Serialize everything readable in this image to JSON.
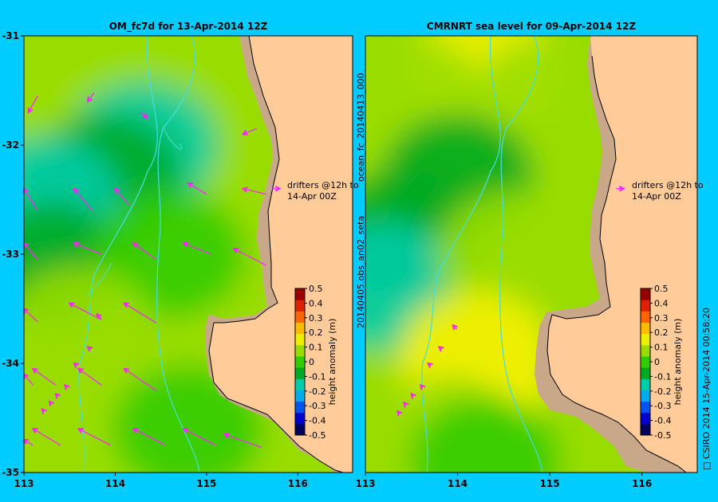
{
  "colors": {
    "background": "#00ccff",
    "land": "#ffcc99",
    "shelf": "#c8a888",
    "coast": "#000000",
    "bathymetry": "#44dddd",
    "drifter": "#ff22ff"
  },
  "chart_data": [
    {
      "type": "heatmap",
      "title": "OM_fc7d for 13-Apr-2014 12Z",
      "xlim": [
        113,
        116.6
      ],
      "ylim": [
        -35,
        -31
      ],
      "xticks": [
        "113",
        "114",
        "115",
        "116"
      ],
      "yticks": [
        "-31",
        "-32",
        "-33",
        "-34",
        "-35"
      ],
      "annotation": [
        "drifters @12h to",
        "14-Apr 00Z"
      ],
      "contour_levels": [
        {
          "lon": 113.3,
          "lat": -31.2,
          "level": 0.1
        },
        {
          "lon": 114.3,
          "lat": -32.0,
          "level": -0.2
        },
        {
          "lon": 113.9,
          "lat": -32.3,
          "level": -0.1
        },
        {
          "lon": 113.2,
          "lat": -32.5,
          "level": -0.15
        },
        {
          "lon": 113.3,
          "lat": -33.1,
          "level": -0.05
        },
        {
          "lon": 114.6,
          "lat": -33.0,
          "level": 0.0
        },
        {
          "lon": 113.6,
          "lat": -33.7,
          "level": 0.05
        },
        {
          "lon": 114.0,
          "lat": -34.2,
          "level": 0.12
        },
        {
          "lon": 113.5,
          "lat": -34.6,
          "level": 0.08
        },
        {
          "lon": 114.8,
          "lat": -34.6,
          "level": 0.0
        }
      ]
    },
    {
      "type": "heatmap",
      "title": "CMRNRT sea level  for 09-Apr-2014 12Z",
      "xlim": [
        113,
        116.6
      ],
      "ylim": [
        -35,
        -31
      ],
      "xticks": [
        "113",
        "114",
        "115",
        "116"
      ],
      "annotation": [
        "drifters @12h to",
        "14-Apr 00Z"
      ],
      "contour_levels": [
        {
          "lon": 114.3,
          "lat": -31.3,
          "level": 0.15
        },
        {
          "lon": 115.0,
          "lat": -31.6,
          "level": 0.1
        },
        {
          "lon": 113.5,
          "lat": -31.6,
          "level": 0.05
        },
        {
          "lon": 114.0,
          "lat": -32.3,
          "level": -0.1
        },
        {
          "lon": 113.4,
          "lat": -32.8,
          "level": -0.05
        },
        {
          "lon": 113.2,
          "lat": -33.3,
          "level": -0.15
        },
        {
          "lon": 114.6,
          "lat": -33.0,
          "level": 0.05
        },
        {
          "lon": 114.2,
          "lat": -33.9,
          "level": 0.15
        },
        {
          "lon": 114.2,
          "lat": -34.1,
          "level": 0.2
        },
        {
          "lon": 113.9,
          "lat": -34.7,
          "level": 0.1
        },
        {
          "lon": 114.3,
          "lat": -34.9,
          "level": 0.0
        }
      ]
    }
  ],
  "colorbar": {
    "label": "height anomaly (m)",
    "min": -0.5,
    "max": 0.5,
    "ticks": [
      "0.5",
      "0.4",
      "0.3",
      "0.2",
      "0.1",
      "0",
      "-0.1",
      "-0.2",
      "-0.3",
      "-0.4",
      "-0.5"
    ],
    "stops": [
      "#00005a",
      "#0000cc",
      "#0055ee",
      "#00aaee",
      "#00ccaa",
      "#00aa22",
      "#33cc00",
      "#99dd00",
      "#eeee00",
      "#ffbb00",
      "#ff6600",
      "#dd2200",
      "#990000"
    ]
  },
  "side_labels": {
    "file_left": "20140405.obs_an02_seta",
    "file_right": "ocean_fc_20140413_000",
    "footer": "□ CSIRO 2014   15-Apr-2014 00:58:20"
  },
  "drifters_left": [
    {
      "lon": 113.05,
      "lat": -31.7,
      "u": 0.1,
      "v": 0.15
    },
    {
      "lon": 113.7,
      "lat": -31.6,
      "u": 0.07,
      "v": 0.08
    },
    {
      "lon": 114.35,
      "lat": -31.75,
      "u": -0.08,
      "v": 0.05
    },
    {
      "lon": 115.4,
      "lat": -31.9,
      "u": 0.15,
      "v": 0.05
    },
    {
      "lon": 113.0,
      "lat": -32.4,
      "u": 0.15,
      "v": -0.2
    },
    {
      "lon": 113.55,
      "lat": -32.4,
      "u": 0.2,
      "v": -0.2
    },
    {
      "lon": 114.0,
      "lat": -32.4,
      "u": 0.15,
      "v": -0.15
    },
    {
      "lon": 114.8,
      "lat": -32.35,
      "u": 0.2,
      "v": -0.1
    },
    {
      "lon": 115.4,
      "lat": -32.4,
      "u": 0.25,
      "v": -0.05
    },
    {
      "lon": 113.0,
      "lat": -32.9,
      "u": 0.15,
      "v": -0.15
    },
    {
      "lon": 113.55,
      "lat": -32.9,
      "u": 0.3,
      "v": -0.1
    },
    {
      "lon": 114.2,
      "lat": -32.9,
      "u": 0.25,
      "v": -0.15
    },
    {
      "lon": 114.75,
      "lat": -32.9,
      "u": 0.3,
      "v": -0.1
    },
    {
      "lon": 115.3,
      "lat": -32.95,
      "u": 0.35,
      "v": -0.15
    },
    {
      "lon": 113.0,
      "lat": -33.5,
      "u": 0.15,
      "v": -0.12
    },
    {
      "lon": 113.5,
      "lat": -33.45,
      "u": 0.35,
      "v": -0.15
    },
    {
      "lon": 114.1,
      "lat": -33.45,
      "u": 0.35,
      "v": -0.18
    },
    {
      "lon": 113.8,
      "lat": -33.55,
      "u": 0.05,
      "v": -0.05
    },
    {
      "lon": 113.7,
      "lat": -33.85,
      "u": 0.03,
      "v": -0.02
    },
    {
      "lon": 113.55,
      "lat": -34.0,
      "u": 0.03,
      "v": -0.02
    },
    {
      "lon": 113.1,
      "lat": -34.05,
      "u": 0.25,
      "v": -0.15
    },
    {
      "lon": 113.6,
      "lat": -34.05,
      "u": 0.25,
      "v": -0.15
    },
    {
      "lon": 114.1,
      "lat": -34.05,
      "u": 0.35,
      "v": -0.2
    },
    {
      "lon": 113.45,
      "lat": -34.2,
      "u": 0.02,
      "v": -0.02
    },
    {
      "lon": 113.35,
      "lat": -34.28,
      "u": 0.02,
      "v": -0.02
    },
    {
      "lon": 113.28,
      "lat": -34.35,
      "u": 0.02,
      "v": -0.02
    },
    {
      "lon": 113.2,
      "lat": -34.42,
      "u": 0.02,
      "v": -0.02
    },
    {
      "lon": 113.0,
      "lat": -34.1,
      "u": 0.1,
      "v": -0.1
    },
    {
      "lon": 113.1,
      "lat": -34.6,
      "u": 0.3,
      "v": -0.15
    },
    {
      "lon": 113.6,
      "lat": -34.6,
      "u": 0.35,
      "v": -0.15
    },
    {
      "lon": 114.2,
      "lat": -34.6,
      "u": 0.35,
      "v": -0.15
    },
    {
      "lon": 114.75,
      "lat": -34.6,
      "u": 0.35,
      "v": -0.15
    },
    {
      "lon": 115.2,
      "lat": -34.65,
      "u": 0.4,
      "v": -0.12
    },
    {
      "lon": 113.0,
      "lat": -34.7,
      "u": 0.1,
      "v": -0.05
    },
    {
      "lon": 115.8,
      "lat": -32.4,
      "u": -0.08,
      "v": 0.0
    }
  ],
  "drifters_right": [
    {
      "lon": 113.95,
      "lat": -33.65,
      "u": 0.04,
      "v": -0.04
    },
    {
      "lon": 113.8,
      "lat": -33.85,
      "u": 0.03,
      "v": -0.02
    },
    {
      "lon": 113.68,
      "lat": -34.0,
      "u": 0.03,
      "v": -0.02
    },
    {
      "lon": 113.6,
      "lat": -34.2,
      "u": 0.02,
      "v": -0.02
    },
    {
      "lon": 113.5,
      "lat": -34.28,
      "u": 0.02,
      "v": -0.02
    },
    {
      "lon": 113.42,
      "lat": -34.36,
      "u": 0.02,
      "v": -0.02
    },
    {
      "lon": 113.35,
      "lat": -34.44,
      "u": 0.02,
      "v": -0.02
    },
    {
      "lon": 115.8,
      "lat": -32.4,
      "u": -0.08,
      "v": 0.0
    }
  ]
}
